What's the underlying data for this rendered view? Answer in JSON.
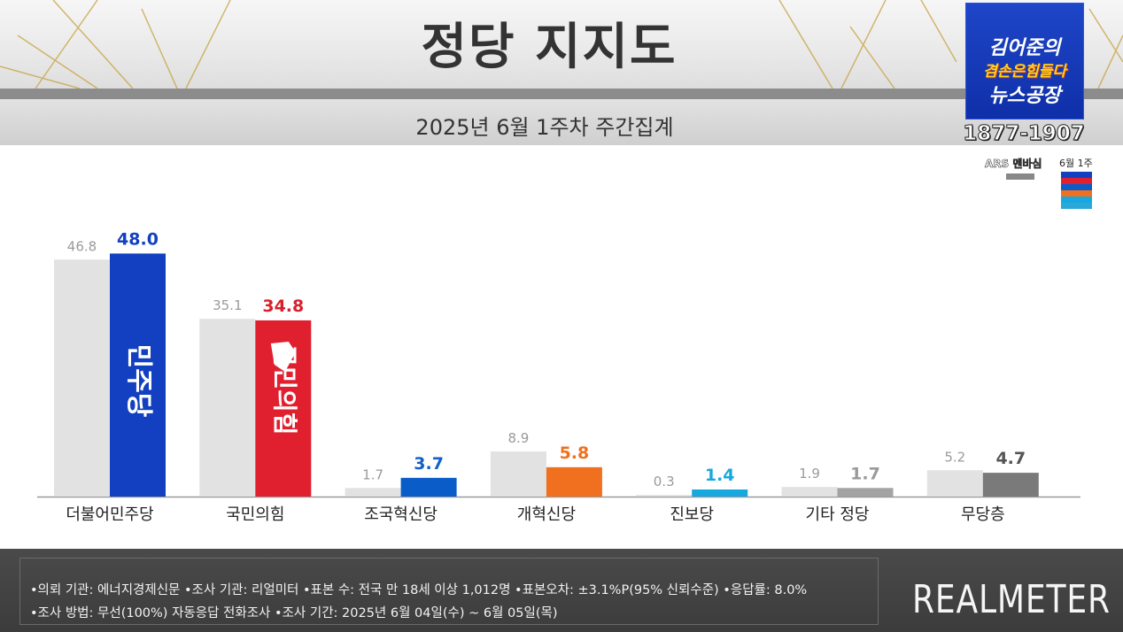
{
  "header": {
    "title": "정당 지지도",
    "subtitle": "2025년 6월 1주차 주간집계"
  },
  "logo": {
    "line1": "김어준의",
    "line2": "겸손은힘들다",
    "line3": "뉴스공장",
    "phone": "1877-1907",
    "ars_label": "ARS 멘바심",
    "week_label": "6월 1주"
  },
  "footer": {
    "line1": "•의뢰 기관: 에너지경제신문  •조사 기관: 리얼미터 •표본 수: 전국 만 18세 이상 1,012명 •표본오차: ±3.1%P(95% 신뢰수준) •응답률: 8.0%",
    "line2": "•조사 방법: 무선(100%) 자동응답 전화조사 •조사 기간: 2025년 6월 04일(수) ~ 6월 05일(목)",
    "brand": "REALMETER"
  },
  "chart_data": {
    "type": "bar",
    "categories": [
      "더불어민주당",
      "국민의힘",
      "조국혁신당",
      "개혁신당",
      "진보당",
      "기타 정당",
      "무당층"
    ],
    "series": [
      {
        "values": [
          46.8,
          35.1,
          1.7,
          8.9,
          0.3,
          1.9,
          5.2
        ]
      },
      {
        "values": [
          48.0,
          34.8,
          3.7,
          5.8,
          1.4,
          1.7,
          4.7
        ]
      }
    ],
    "value_labels_prev": [
      "46.8",
      "35.1",
      "1.7",
      "8.9",
      "0.3",
      "1.9",
      "5.2"
    ],
    "value_labels_curr": [
      "48.0",
      "34.8",
      "3.7",
      "5.8",
      "1.4",
      "1.7",
      "4.7"
    ],
    "bar_inner_labels": [
      "민주당",
      "국민의힘"
    ],
    "colors": {
      "prev": "#e2e2e2",
      "curr": [
        "#1240c0",
        "#e0202f",
        "#0a5cc8",
        "#f07020",
        "#18a8e0",
        "#a3a3a3",
        "#7a7a7a"
      ],
      "label_curr": [
        "#1240c0",
        "#d8202c",
        "#1060c8",
        "#f07020",
        "#18a8e0",
        "#9a9a9a",
        "#555555"
      ]
    },
    "ylim": [
      0,
      55
    ],
    "grid": false,
    "legend": "none"
  }
}
